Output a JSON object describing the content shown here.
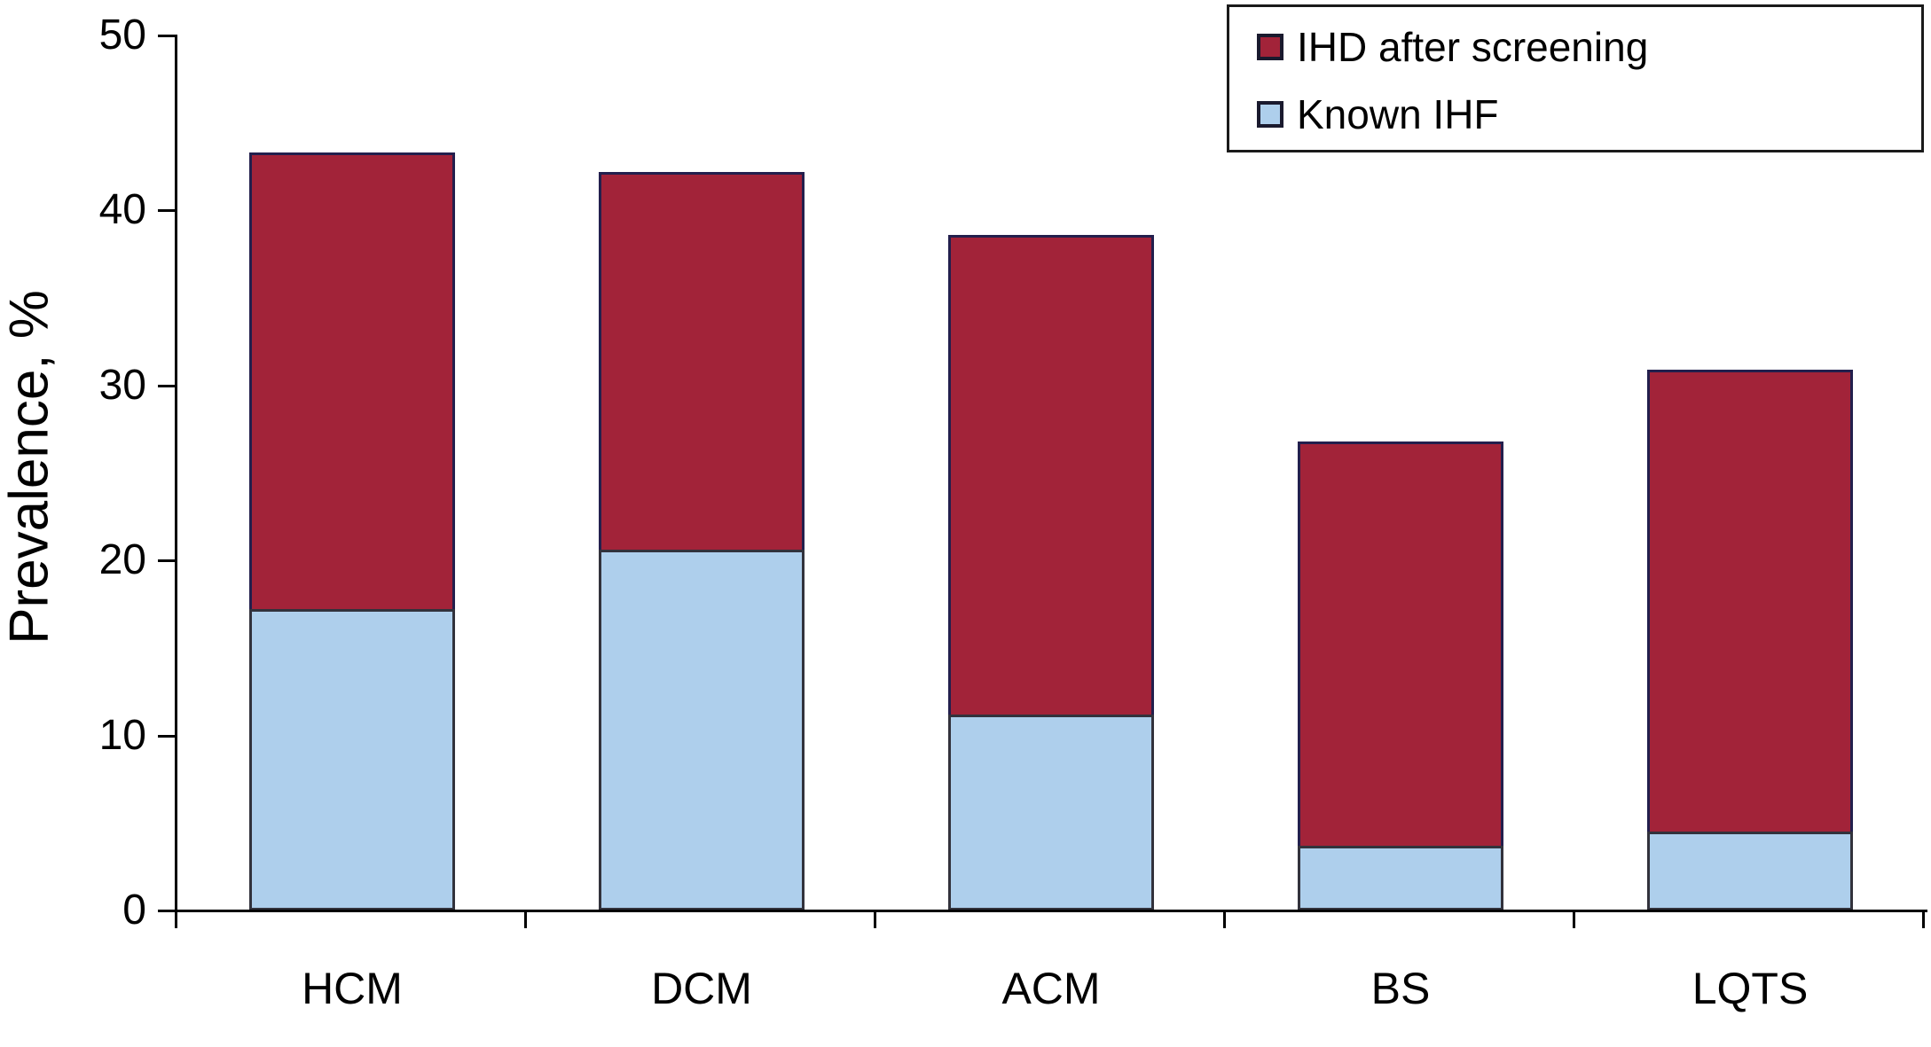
{
  "figure": {
    "background": "#ffffff",
    "text_color": "#000000",
    "axis_color": "#000000"
  },
  "chart_data": {
    "type": "bar",
    "stacked": true,
    "title": "",
    "xlabel": "",
    "ylabel": "Prevalence, %",
    "ylim": [
      0,
      50
    ],
    "yticks": [
      0,
      10,
      20,
      30,
      40,
      50
    ],
    "grid": false,
    "legend_position": "top-right",
    "categories": [
      "HCM",
      "DCM",
      "ACM",
      "BS",
      "LQTS"
    ],
    "series": [
      {
        "name": "Known IHF",
        "color": "#aecfec",
        "border_color": "#32323c",
        "values": [
          17.2,
          20.6,
          11.2,
          3.7,
          4.5
        ]
      },
      {
        "name": "IHD after screening",
        "color": "#a22339",
        "border_color": "#231f4d",
        "values": [
          26.1,
          21.6,
          27.4,
          23.1,
          26.4
        ]
      }
    ],
    "totals": [
      43.3,
      42.2,
      38.6,
      26.8,
      30.9
    ]
  },
  "legend": {
    "items": [
      {
        "label": "IHD after screening",
        "color": "#a22339"
      },
      {
        "label": "Known IHF",
        "color": "#aecfec"
      }
    ]
  }
}
